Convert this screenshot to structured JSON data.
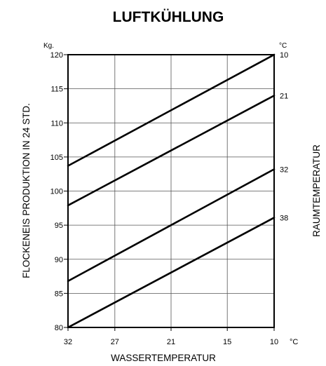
{
  "chart_data": {
    "type": "line",
    "title": "LUFTKÜHLUNG",
    "xlabel": "WASSERTEMPERATUR",
    "ylabel": "FLOCKENEIS PRODUKTION IN 24 STD.",
    "right_label": "RAUMTEMPERATUR",
    "y_unit": "Kg.",
    "x_unit": "°C",
    "series_unit": "°C",
    "x_ticks": [
      "32",
      "27",
      "21",
      "15",
      "10"
    ],
    "x_tick_values": [
      32,
      27,
      21,
      15,
      10
    ],
    "xlim": [
      32,
      10
    ],
    "x_reversed": true,
    "ylim": [
      80,
      120
    ],
    "y_ticks": [
      80,
      85,
      90,
      95,
      100,
      105,
      110,
      115,
      120
    ],
    "grid": true,
    "series": [
      {
        "name": "10",
        "x": [
          32,
          10
        ],
        "y": [
          103.7,
          120
        ]
      },
      {
        "name": "21",
        "x": [
          32,
          10
        ],
        "y": [
          97.9,
          114
        ]
      },
      {
        "name": "32",
        "x": [
          32,
          10
        ],
        "y": [
          86.8,
          103.2
        ]
      },
      {
        "name": "38",
        "x": [
          32,
          10
        ],
        "y": [
          80,
          96.1
        ]
      }
    ]
  }
}
